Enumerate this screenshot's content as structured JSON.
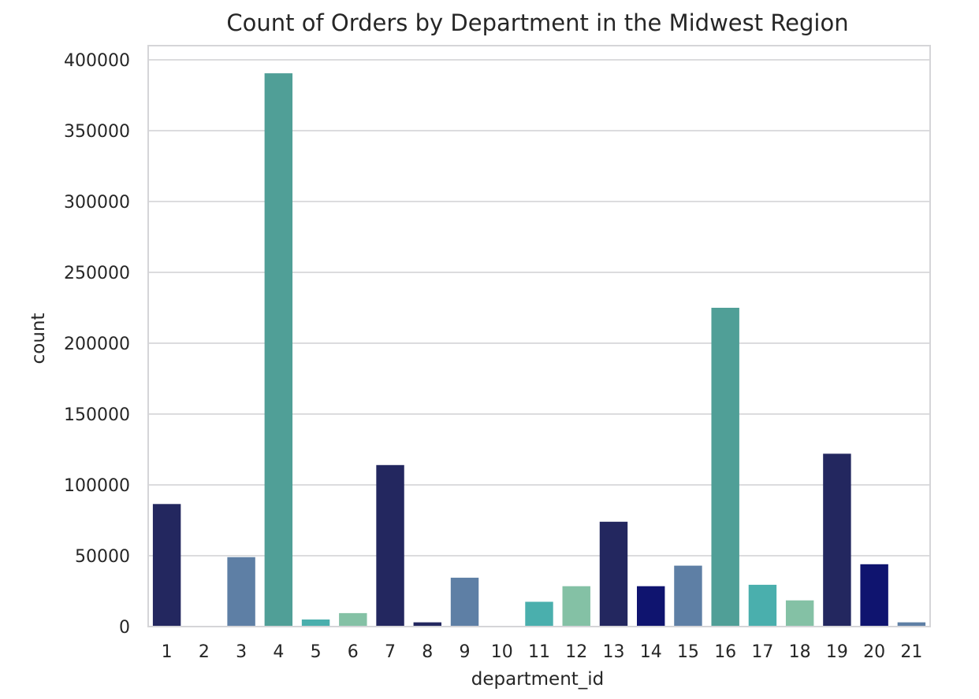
{
  "chart_data": {
    "type": "bar",
    "title": "Count of Orders by Department in the Midwest Region",
    "xlabel": "department_id",
    "ylabel": "count",
    "categories": [
      "1",
      "2",
      "3",
      "4",
      "5",
      "6",
      "7",
      "8",
      "9",
      "10",
      "11",
      "12",
      "13",
      "14",
      "15",
      "16",
      "17",
      "18",
      "19",
      "20",
      "21"
    ],
    "values": [
      86500,
      0,
      49000,
      390500,
      5000,
      9500,
      114000,
      3000,
      34500,
      0,
      17500,
      28500,
      74000,
      28500,
      43000,
      225000,
      29500,
      18500,
      122000,
      44000,
      3000
    ],
    "colors": [
      "#23275f",
      "#23275f",
      "#5e7fa5",
      "#509f97",
      "#4aafad",
      "#84c1a5",
      "#23275f",
      "#23275f",
      "#5e7fa5",
      "#509f97",
      "#4aafad",
      "#84c1a5",
      "#23275f",
      "#0f146f",
      "#5e7fa5",
      "#509f97",
      "#4aafad",
      "#84c1a5",
      "#23275f",
      "#0f146f",
      "#5e7fa5"
    ],
    "ylim": [
      0,
      410000
    ],
    "yticks": [
      0,
      50000,
      100000,
      150000,
      200000,
      250000,
      300000,
      350000,
      400000
    ],
    "ytick_labels": [
      "0",
      "50000",
      "100000",
      "150000",
      "200000",
      "250000",
      "300000",
      "350000",
      "400000"
    ],
    "grid": true,
    "legend": false
  }
}
